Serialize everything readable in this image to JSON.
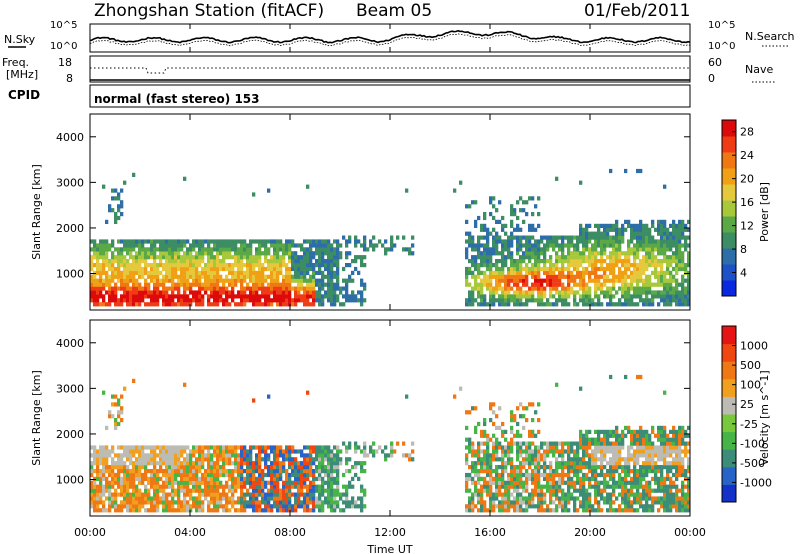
{
  "header": {
    "title": "Zhongshan Station (fitACF)",
    "beam": "Beam 05",
    "date": "01/Feb/2011"
  },
  "noise_panel": {
    "left_label": "N.Sky",
    "right_label": "N.Search",
    "left_ticks": [
      "10^5",
      "10^0"
    ],
    "right_ticks": [
      "10^5",
      "10^0"
    ]
  },
  "freq_panel": {
    "left_label": "Freq.",
    "left_unit": "[MHz]",
    "right_label": "Nave",
    "left_ticks": [
      "18",
      "8"
    ],
    "right_ticks": [
      "60",
      "0"
    ]
  },
  "cpid": {
    "label": "CPID",
    "value": "normal (fast stereo) 153"
  },
  "time_axis": {
    "label": "Time UT",
    "ticks": [
      "00:00",
      "04:00",
      "08:00",
      "12:00",
      "16:00",
      "20:00",
      "00:00"
    ]
  },
  "chart_data": [
    {
      "type": "heatmap",
      "title": "",
      "xlabel": "",
      "ylabel": "Slant Range [km]",
      "x": "Time UT 00:00 to 24:00",
      "xlim": [
        "00:00",
        "24:00"
      ],
      "ylim": [
        200,
        4500
      ],
      "yticks": [
        "1000",
        "2000",
        "3000",
        "4000"
      ],
      "colorbar": {
        "label": "Power [dB]",
        "ticks": [
          "4",
          "8",
          "12",
          "16",
          "20",
          "24",
          "28"
        ],
        "range": [
          0,
          30
        ],
        "colors": [
          "#0a28e0",
          "#1e50c8",
          "#2e6ea8",
          "#3c8c64",
          "#5aa846",
          "#a8c83c",
          "#e6c83c",
          "#f0a014",
          "#f07814",
          "#f03c14",
          "#dc0a0a"
        ]
      },
      "regions": [
        {
          "from": "00:00",
          "to": "11:00",
          "range_km": [
            250,
            1700
          ],
          "level": "mixed, strongest near 250–700 km"
        },
        {
          "from": "15:00",
          "to": "19:30",
          "range_km": [
            400,
            1700
          ],
          "level": "strong near 600–1000 km"
        },
        {
          "from": "19:30",
          "to": "24:00",
          "range_km": [
            300,
            2100
          ],
          "level": "moderate"
        },
        {
          "from": "10:00",
          "to": "13:00",
          "range_km": [
            1400,
            1800
          ],
          "level": "weak"
        }
      ]
    },
    {
      "type": "heatmap",
      "title": "",
      "xlabel": "",
      "ylabel": "Slant Range [km]",
      "x": "Time UT 00:00 to 24:00",
      "xlim": [
        "00:00",
        "24:00"
      ],
      "ylim": [
        200,
        4500
      ],
      "yticks": [
        "1000",
        "2000",
        "3000",
        "4000"
      ],
      "colorbar": {
        "label": "Velocity [m s^-1]",
        "ticks": [
          "1000",
          "500",
          "100",
          "25",
          "-25",
          "-100",
          "-500",
          "-1000"
        ],
        "colors": [
          "#1432c8",
          "#2864c8",
          "#3c8c78",
          "#46b446",
          "#78c83c",
          "#bcbcb4",
          "#f0a01e",
          "#f07814",
          "#f0460f",
          "#e61414"
        ]
      }
    }
  ]
}
